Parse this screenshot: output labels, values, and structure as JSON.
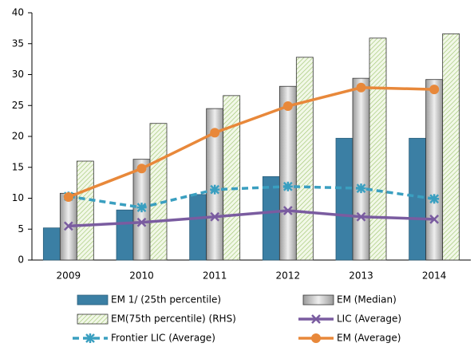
{
  "chart_data": {
    "type": "bar",
    "categories": [
      "2009",
      "2010",
      "2011",
      "2012",
      "2013",
      "2014"
    ],
    "ylim": [
      0,
      40
    ],
    "yticks": [
      0,
      5,
      10,
      15,
      20,
      25,
      30,
      35,
      40
    ],
    "series": [
      {
        "name": "EM 1/ (25th  percentile)",
        "type": "bar",
        "color": "#3b7fa4",
        "values": [
          5.2,
          8.1,
          10.6,
          13.5,
          19.7,
          19.7
        ]
      },
      {
        "name": "EM (Median)",
        "type": "bar",
        "color": "#c4c4c4",
        "values": [
          10.8,
          16.3,
          24.5,
          28.1,
          29.4,
          29.2
        ]
      },
      {
        "name": "EM(75th percentile) (RHS)",
        "type": "bar",
        "color": "#b6d98e",
        "values": [
          16.0,
          22.1,
          26.6,
          32.8,
          35.9,
          36.6
        ]
      },
      {
        "name": "LIC (Average)",
        "type": "line",
        "marker": "x",
        "color": "#7a5ca0",
        "values": [
          5.5,
          6.1,
          7.0,
          8.0,
          7.0,
          6.6
        ]
      },
      {
        "name": "Frontier LIC (Average)",
        "type": "line",
        "marker": "star",
        "dashed": true,
        "color": "#3a9fc0",
        "values": [
          10.3,
          8.5,
          11.4,
          11.9,
          11.6,
          9.9
        ]
      },
      {
        "name": "EM (Average)",
        "type": "line",
        "marker": "circle",
        "color": "#e8883a",
        "values": [
          10.2,
          14.8,
          20.6,
          24.9,
          27.9,
          27.6
        ]
      }
    ]
  }
}
